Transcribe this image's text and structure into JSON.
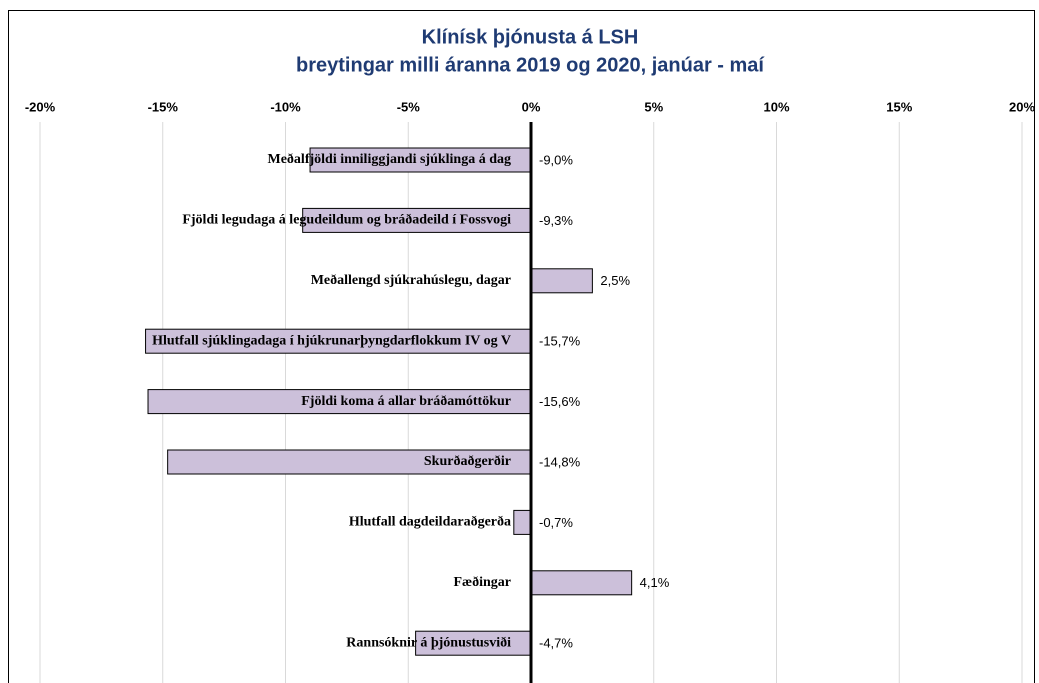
{
  "chart_data": {
    "type": "hbar",
    "title": "Klínísk þjónusta á LSH",
    "subtitle": "breytingar milli áranna 2019 og 2020,  janúar - maí",
    "categories": [
      "Meðalfjöldi inniliggjandi sjúklinga á dag",
      "Fjöldi legudaga á legudeildum og bráðadeild í Fossvogi",
      "Meðallengd sjúkrahúslegu, dagar",
      "Hlutfall sjúklingadaga í hjúkrunarþyngdarflokkum IV og V",
      "Fjöldi koma á allar bráðamóttökur",
      "Skurðaðgerðir",
      "Hlutfall dagdeildaraðgerða",
      "Fæðingar",
      "Rannsóknir á þjónustusviði"
    ],
    "values": [
      -9.0,
      -9.3,
      2.5,
      -15.7,
      -15.6,
      -14.8,
      -0.7,
      4.1,
      -4.7
    ],
    "value_labels": [
      "-9,0%",
      "-9,3%",
      "2,5%",
      "-15,7%",
      "-15,6%",
      "-14,8%",
      "-0,7%",
      "4,1%",
      "-4,7%"
    ],
    "color": "#ccc0da",
    "xlim": [
      -20,
      20
    ],
    "xticks": [
      {
        "value": -20,
        "label": "-20%"
      },
      {
        "value": -15,
        "label": "-15%"
      },
      {
        "value": -10,
        "label": "-10%"
      },
      {
        "value": -5,
        "label": "-5%"
      },
      {
        "value": 0,
        "label": "0%"
      },
      {
        "value": 5,
        "label": "5%"
      },
      {
        "value": 10,
        "label": "10%"
      },
      {
        "value": 15,
        "label": "15%"
      },
      {
        "value": 20,
        "label": "20%"
      }
    ],
    "grid": true
  }
}
